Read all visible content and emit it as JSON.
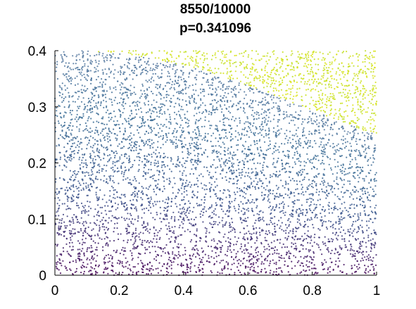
{
  "chart_data": {
    "type": "scatter",
    "title_lines": [
      "8550/10000",
      "p=0.341096"
    ],
    "xlabel": "",
    "ylabel": "",
    "xlim": [
      0,
      1
    ],
    "ylim": [
      0,
      0.4
    ],
    "xticks": [
      0,
      0.2,
      0.4,
      0.6,
      0.8,
      1
    ],
    "xtick_labels": [
      "0",
      "0.2",
      "0.4",
      "0.6",
      "0.8",
      "1"
    ],
    "yticks": [
      0,
      0.1,
      0.2,
      0.3,
      0.4
    ],
    "ytick_labels": [
      "0",
      "0.1",
      "0.2",
      "0.3",
      "0.4"
    ],
    "grid": false,
    "total_points": 10000,
    "points_below_boundary": 8550,
    "estimated_p": 0.341096,
    "boundary_curve": {
      "x": [
        0,
        0.1,
        0.2,
        0.3,
        0.4,
        0.5,
        0.6,
        0.7,
        0.8,
        0.9,
        1.0
      ],
      "y": [
        0.4,
        0.4,
        0.395,
        0.386,
        0.374,
        0.358,
        0.338,
        0.316,
        0.294,
        0.271,
        0.25
      ]
    },
    "colormap": "viridis",
    "colors": {
      "low": "#440154",
      "mid_low": "#3b528b",
      "mid": "#21918c",
      "outside_boundary": "#cde11d",
      "axes": "#000000"
    }
  }
}
